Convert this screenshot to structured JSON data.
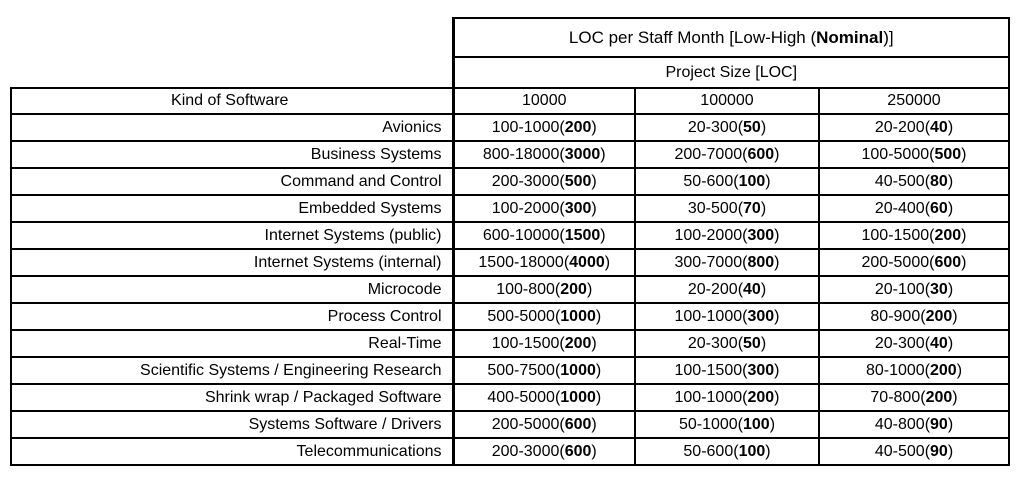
{
  "table": {
    "title": {
      "prefix": "LOC per Staff Month [Low-High (",
      "bold": "Nominal",
      "suffix": ")]"
    },
    "subtitle": "Project Size [LOC]",
    "kind_header": "Kind of Software",
    "size_columns": [
      "10000",
      "100000",
      "250000"
    ],
    "rows": [
      {
        "label": "Avionics",
        "cells": [
          {
            "range": "100-1000",
            "nominal": "200"
          },
          {
            "range": "20-300",
            "nominal": "50"
          },
          {
            "range": "20-200",
            "nominal": "40"
          }
        ]
      },
      {
        "label": "Business Systems",
        "cells": [
          {
            "range": "800-18000",
            "nominal": "3000"
          },
          {
            "range": "200-7000",
            "nominal": "600"
          },
          {
            "range": "100-5000",
            "nominal": "500"
          }
        ]
      },
      {
        "label": "Command and Control",
        "cells": [
          {
            "range": "200-3000",
            "nominal": "500"
          },
          {
            "range": "50-600",
            "nominal": "100"
          },
          {
            "range": "40-500",
            "nominal": "80"
          }
        ]
      },
      {
        "label": "Embedded Systems",
        "cells": [
          {
            "range": "100-2000",
            "nominal": "300"
          },
          {
            "range": "30-500",
            "nominal": "70"
          },
          {
            "range": "20-400",
            "nominal": "60"
          }
        ]
      },
      {
        "label": "Internet Systems (public)",
        "cells": [
          {
            "range": "600-10000",
            "nominal": "1500"
          },
          {
            "range": "100-2000",
            "nominal": "300"
          },
          {
            "range": "100-1500",
            "nominal": "200"
          }
        ]
      },
      {
        "label": "Internet Systems (internal)",
        "cells": [
          {
            "range": "1500-18000",
            "nominal": "4000"
          },
          {
            "range": "300-7000",
            "nominal": "800"
          },
          {
            "range": "200-5000",
            "nominal": "600"
          }
        ]
      },
      {
        "label": "Microcode",
        "cells": [
          {
            "range": "100-800",
            "nominal": "200"
          },
          {
            "range": "20-200",
            "nominal": "40"
          },
          {
            "range": "20-100",
            "nominal": "30"
          }
        ]
      },
      {
        "label": "Process Control",
        "cells": [
          {
            "range": "500-5000",
            "nominal": "1000"
          },
          {
            "range": "100-1000",
            "nominal": "300"
          },
          {
            "range": "80-900",
            "nominal": "200"
          }
        ]
      },
      {
        "label": "Real-Time",
        "cells": [
          {
            "range": "100-1500",
            "nominal": "200"
          },
          {
            "range": "20-300",
            "nominal": "50"
          },
          {
            "range": "20-300",
            "nominal": "40"
          }
        ]
      },
      {
        "label": "Scientific Systems / Engineering Research",
        "cells": [
          {
            "range": "500-7500",
            "nominal": "1000"
          },
          {
            "range": "100-1500",
            "nominal": "300"
          },
          {
            "range": "80-1000",
            "nominal": "200"
          }
        ]
      },
      {
        "label": "Shrink wrap / Packaged Software",
        "cells": [
          {
            "range": "400-5000",
            "nominal": "1000"
          },
          {
            "range": "100-1000",
            "nominal": "200"
          },
          {
            "range": "70-800",
            "nominal": "200"
          }
        ]
      },
      {
        "label": "Systems Software / Drivers",
        "cells": [
          {
            "range": "200-5000",
            "nominal": "600"
          },
          {
            "range": "50-1000",
            "nominal": "100"
          },
          {
            "range": "40-800",
            "nominal": "90"
          }
        ]
      },
      {
        "label": "Telecommunications",
        "cells": [
          {
            "range": "200-3000",
            "nominal": "600"
          },
          {
            "range": "50-600",
            "nominal": "100"
          },
          {
            "range": "40-500",
            "nominal": "90"
          }
        ]
      }
    ]
  },
  "chart_data": {
    "type": "table",
    "title": "LOC per Staff Month [Low-High (Nominal)]",
    "column_group_header": "Project Size [LOC]",
    "columns": [
      "Kind of Software",
      "10000",
      "100000",
      "250000"
    ],
    "rows": [
      [
        "Avionics",
        "100-1000(200)",
        "20-300(50)",
        "20-200(40)"
      ],
      [
        "Business Systems",
        "800-18000(3000)",
        "200-7000(600)",
        "100-5000(500)"
      ],
      [
        "Command and Control",
        "200-3000(500)",
        "50-600(100)",
        "40-500(80)"
      ],
      [
        "Embedded Systems",
        "100-2000(300)",
        "30-500(70)",
        "20-400(60)"
      ],
      [
        "Internet Systems (public)",
        "600-10000(1500)",
        "100-2000(300)",
        "100-1500(200)"
      ],
      [
        "Internet Systems (internal)",
        "1500-18000(4000)",
        "300-7000(800)",
        "200-5000(600)"
      ],
      [
        "Microcode",
        "100-800(200)",
        "20-200(40)",
        "20-100(30)"
      ],
      [
        "Process Control",
        "500-5000(1000)",
        "100-1000(300)",
        "80-900(200)"
      ],
      [
        "Real-Time",
        "100-1500(200)",
        "20-300(50)",
        "20-300(40)"
      ],
      [
        "Scientific Systems / Engineering Research",
        "500-7500(1000)",
        "100-1500(300)",
        "80-1000(200)"
      ],
      [
        "Shrink wrap / Packaged Software",
        "400-5000(1000)",
        "100-1000(200)",
        "70-800(200)"
      ],
      [
        "Systems Software / Drivers",
        "200-5000(600)",
        "50-1000(100)",
        "40-800(90)"
      ],
      [
        "Telecommunications",
        "200-3000(600)",
        "50-600(100)",
        "40-500(90)"
      ]
    ]
  }
}
